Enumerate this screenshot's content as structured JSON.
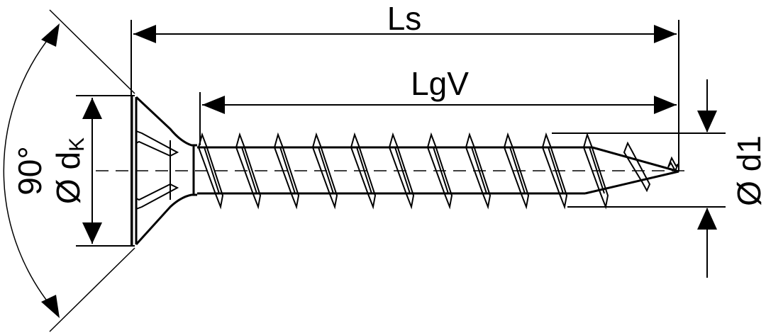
{
  "labels": {
    "overall_length": "Ls",
    "thread_length": "LgV",
    "head_angle": "90°",
    "head_diameter_symbol": "Ø d",
    "head_diameter_subscript": "K",
    "thread_diameter": "Ø d1"
  },
  "colors": {
    "line": "#000000",
    "background": "#ffffff"
  }
}
